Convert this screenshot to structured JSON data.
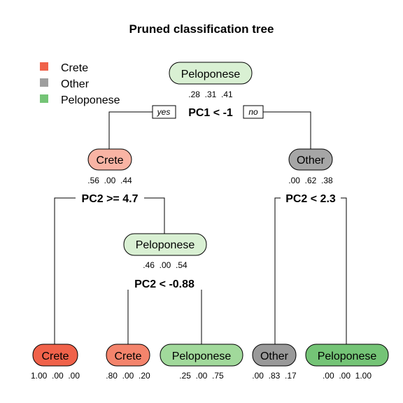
{
  "title": "Pruned classification tree",
  "legend": [
    {
      "label": "Crete",
      "color": "#f0624a"
    },
    {
      "label": "Other",
      "color": "#9e9e9e"
    },
    {
      "label": "Peloponese",
      "color": "#74c476"
    }
  ],
  "branch_labels": {
    "yes": "yes",
    "no": "no"
  },
  "nodes": {
    "root": {
      "label": "Peloponese",
      "probs": ".28  .31  .41",
      "split": "PC1 < -1",
      "fill": "#d9f0d3"
    },
    "crete1": {
      "label": "Crete",
      "probs": ".56  .00  .44",
      "split": "PC2 >= 4.7",
      "fill": "#f9b4a4"
    },
    "other1": {
      "label": "Other",
      "probs": ".00  .62  .38",
      "split": "PC2 < 2.3",
      "fill": "#a6a6a6"
    },
    "pelo2": {
      "label": "Peloponese",
      "probs": ".46  .00  .54",
      "split": "PC2 < -0.88",
      "fill": "#d9f0d3"
    },
    "leaf_crete_a": {
      "label": "Crete",
      "probs": "1.00  .00  .00",
      "fill": "#f0624a"
    },
    "leaf_crete_b": {
      "label": "Crete",
      "probs": ".80  .00  .20",
      "fill": "#f4846c"
    },
    "leaf_pelo_a": {
      "label": "Peloponese",
      "probs": ".25  .00  .75",
      "fill": "#a1d99b"
    },
    "leaf_other": {
      "label": "Other",
      "probs": ".00  .83  .17",
      "fill": "#999999"
    },
    "leaf_pelo_b": {
      "label": "Peloponese",
      "probs": ".00  .00  1.00",
      "fill": "#74c476"
    }
  }
}
